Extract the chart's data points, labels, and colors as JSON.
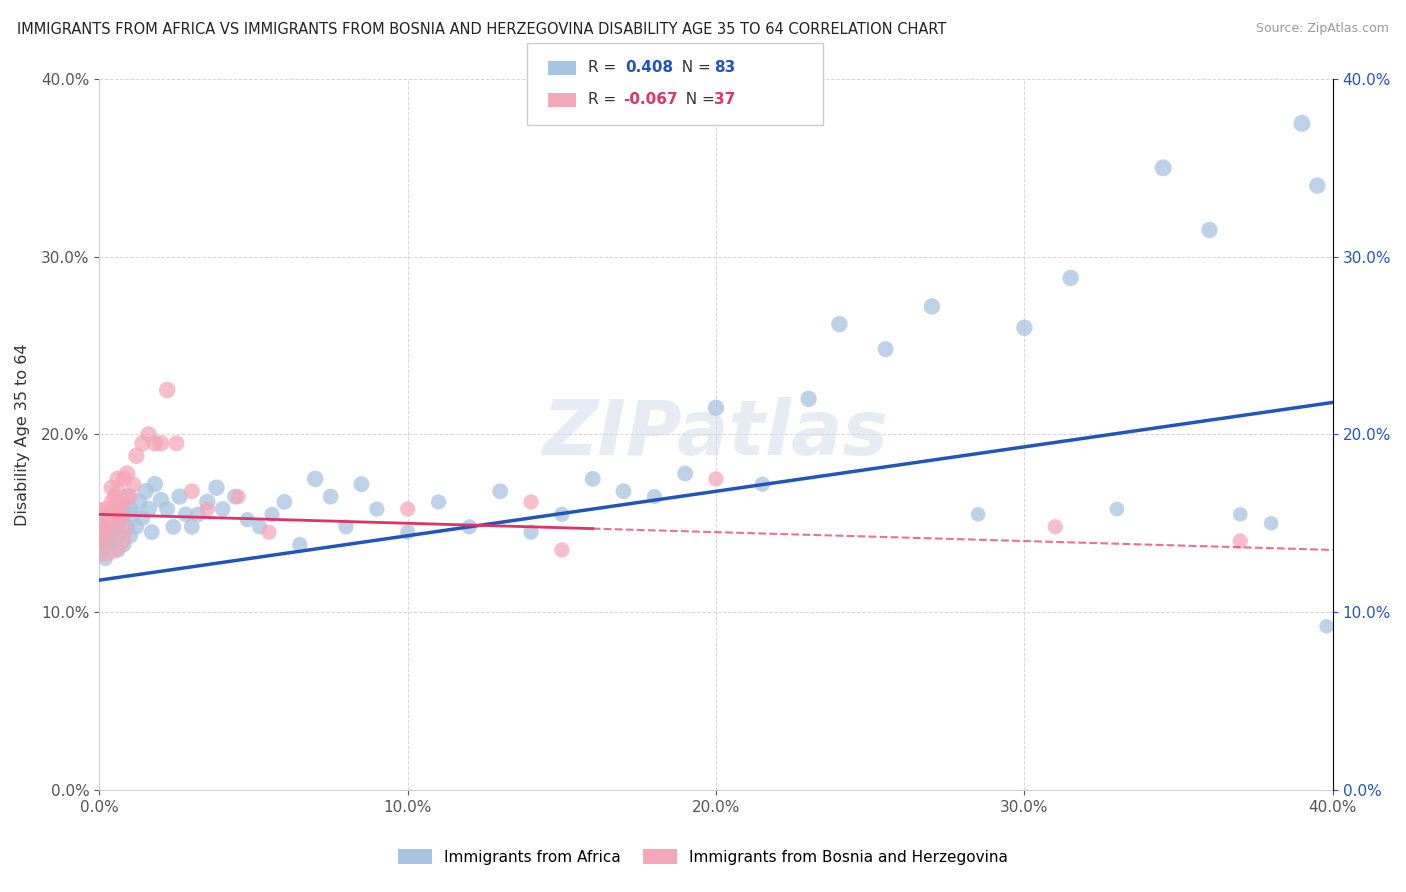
{
  "title": "IMMIGRANTS FROM AFRICA VS IMMIGRANTS FROM BOSNIA AND HERZEGOVINA DISABILITY AGE 35 TO 64 CORRELATION CHART",
  "source": "Source: ZipAtlas.com",
  "ylabel": "Disability Age 35 to 64",
  "legend_label_1": "Immigrants from Africa",
  "legend_label_2": "Immigrants from Bosnia and Herzegovina",
  "R1": 0.408,
  "N1": 83,
  "R2": -0.067,
  "N2": 37,
  "color1": "#a8c4e0",
  "color2": "#f4a7b9",
  "line_color1": "#2255bb",
  "line_color2": "#dd3366",
  "xlim": [
    0,
    0.4
  ],
  "ylim": [
    0,
    0.4
  ],
  "xticks": [
    0.0,
    0.1,
    0.2,
    0.3,
    0.4
  ],
  "yticks": [
    0.0,
    0.1,
    0.2,
    0.3,
    0.4
  ],
  "watermark": "ZIPatlas",
  "africa_x": [
    0.001,
    0.001,
    0.002,
    0.002,
    0.002,
    0.003,
    0.003,
    0.003,
    0.003,
    0.004,
    0.004,
    0.004,
    0.005,
    0.005,
    0.005,
    0.006,
    0.006,
    0.006,
    0.007,
    0.007,
    0.007,
    0.008,
    0.008,
    0.009,
    0.009,
    0.01,
    0.01,
    0.011,
    0.012,
    0.013,
    0.014,
    0.015,
    0.016,
    0.017,
    0.018,
    0.02,
    0.022,
    0.024,
    0.026,
    0.028,
    0.03,
    0.032,
    0.035,
    0.038,
    0.04,
    0.044,
    0.048,
    0.052,
    0.056,
    0.06,
    0.065,
    0.07,
    0.075,
    0.08,
    0.085,
    0.09,
    0.1,
    0.11,
    0.12,
    0.13,
    0.14,
    0.15,
    0.16,
    0.17,
    0.18,
    0.19,
    0.2,
    0.215,
    0.23,
    0.24,
    0.255,
    0.27,
    0.285,
    0.3,
    0.315,
    0.33,
    0.345,
    0.36,
    0.37,
    0.38,
    0.39,
    0.395,
    0.398
  ],
  "africa_y": [
    0.14,
    0.135,
    0.138,
    0.145,
    0.13,
    0.142,
    0.148,
    0.152,
    0.138,
    0.145,
    0.155,
    0.143,
    0.15,
    0.14,
    0.158,
    0.135,
    0.148,
    0.162,
    0.153,
    0.145,
    0.16,
    0.138,
    0.155,
    0.148,
    0.165,
    0.143,
    0.158,
    0.155,
    0.148,
    0.162,
    0.153,
    0.168,
    0.158,
    0.145,
    0.172,
    0.163,
    0.158,
    0.148,
    0.165,
    0.155,
    0.148,
    0.155,
    0.162,
    0.17,
    0.158,
    0.165,
    0.152,
    0.148,
    0.155,
    0.162,
    0.138,
    0.175,
    0.165,
    0.148,
    0.172,
    0.158,
    0.145,
    0.162,
    0.148,
    0.168,
    0.145,
    0.155,
    0.175,
    0.168,
    0.165,
    0.178,
    0.215,
    0.172,
    0.22,
    0.262,
    0.248,
    0.272,
    0.155,
    0.26,
    0.288,
    0.158,
    0.35,
    0.315,
    0.155,
    0.15,
    0.375,
    0.34,
    0.092
  ],
  "africa_size": [
    150,
    120,
    130,
    140,
    110,
    130,
    140,
    150,
    130,
    140,
    150,
    140,
    150,
    140,
    150,
    130,
    140,
    150,
    140,
    130,
    140,
    120,
    140,
    140,
    150,
    130,
    140,
    140,
    130,
    140,
    130,
    140,
    140,
    130,
    140,
    140,
    130,
    130,
    140,
    130,
    130,
    130,
    140,
    140,
    130,
    130,
    120,
    120,
    120,
    130,
    120,
    140,
    130,
    120,
    130,
    120,
    120,
    120,
    120,
    130,
    120,
    120,
    130,
    130,
    120,
    130,
    140,
    120,
    140,
    140,
    130,
    140,
    110,
    140,
    140,
    110,
    150,
    140,
    110,
    110,
    150,
    140,
    110
  ],
  "bosnia_x": [
    0.001,
    0.001,
    0.002,
    0.002,
    0.003,
    0.003,
    0.004,
    0.004,
    0.005,
    0.005,
    0.005,
    0.006,
    0.006,
    0.007,
    0.007,
    0.008,
    0.008,
    0.009,
    0.01,
    0.011,
    0.012,
    0.014,
    0.016,
    0.018,
    0.02,
    0.022,
    0.025,
    0.03,
    0.035,
    0.045,
    0.055,
    0.1,
    0.14,
    0.15,
    0.2,
    0.31,
    0.37
  ],
  "bosnia_y": [
    0.145,
    0.14,
    0.158,
    0.148,
    0.155,
    0.148,
    0.162,
    0.17,
    0.158,
    0.165,
    0.152,
    0.175,
    0.168,
    0.162,
    0.155,
    0.175,
    0.162,
    0.178,
    0.165,
    0.172,
    0.188,
    0.195,
    0.2,
    0.195,
    0.195,
    0.225,
    0.195,
    0.168,
    0.158,
    0.165,
    0.145,
    0.158,
    0.162,
    0.135,
    0.175,
    0.148,
    0.14
  ],
  "bosnia_size": [
    1800,
    120,
    130,
    120,
    140,
    120,
    130,
    140,
    120,
    130,
    120,
    140,
    130,
    130,
    120,
    140,
    130,
    140,
    130,
    130,
    140,
    140,
    140,
    140,
    140,
    140,
    130,
    130,
    120,
    120,
    120,
    120,
    120,
    120,
    120,
    120,
    120
  ]
}
